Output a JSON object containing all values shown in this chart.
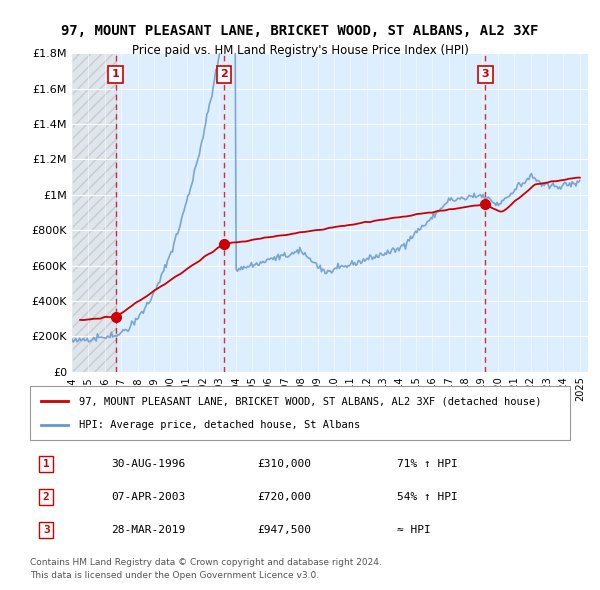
{
  "title": "97, MOUNT PLEASANT LANE, BRICKET WOOD, ST ALBANS, AL2 3XF",
  "subtitle": "Price paid vs. HM Land Registry's House Price Index (HPI)",
  "ylabel": "",
  "xlabel": "",
  "ylim": [
    0,
    1800000
  ],
  "xlim_start": 1994.0,
  "xlim_end": 2025.5,
  "yticks": [
    0,
    200000,
    400000,
    600000,
    800000,
    1000000,
    1200000,
    1400000,
    1600000,
    1800000
  ],
  "ytick_labels": [
    "£0",
    "£200K",
    "£400K",
    "£600K",
    "£800K",
    "£1M",
    "£1.2M",
    "£1.4M",
    "£1.6M",
    "£1.8M"
  ],
  "xticks": [
    1994,
    1995,
    1996,
    1997,
    1998,
    1999,
    2000,
    2001,
    2002,
    2003,
    2004,
    2005,
    2006,
    2007,
    2008,
    2009,
    2010,
    2011,
    2012,
    2013,
    2014,
    2015,
    2016,
    2017,
    2018,
    2019,
    2020,
    2021,
    2022,
    2023,
    2024,
    2025
  ],
  "hpi_color": "#6699cc",
  "price_color": "#cc0000",
  "marker_color": "#cc0000",
  "bg_color": "#ddeeff",
  "hatch_color": "#cccccc",
  "grid_color": "#ffffff",
  "sale1_x": 1996.664,
  "sale1_y": 310000,
  "sale2_x": 2003.27,
  "sale2_y": 720000,
  "sale3_x": 2019.24,
  "sale3_y": 947500,
  "sale1_label": "1",
  "sale2_label": "2",
  "sale3_label": "3",
  "legend_line1": "97, MOUNT PLEASANT LANE, BRICKET WOOD, ST ALBANS, AL2 3XF (detached house)",
  "legend_line2": "HPI: Average price, detached house, St Albans",
  "table_row1_num": "1",
  "table_row1_date": "30-AUG-1996",
  "table_row1_price": "£310,000",
  "table_row1_hpi": "71% ↑ HPI",
  "table_row2_num": "2",
  "table_row2_date": "07-APR-2003",
  "table_row2_price": "£720,000",
  "table_row2_hpi": "54% ↑ HPI",
  "table_row3_num": "3",
  "table_row3_date": "28-MAR-2019",
  "table_row3_price": "£947,500",
  "table_row3_hpi": "≈ HPI",
  "footnote1": "Contains HM Land Registry data © Crown copyright and database right 2024.",
  "footnote2": "This data is licensed under the Open Government Licence v3.0."
}
